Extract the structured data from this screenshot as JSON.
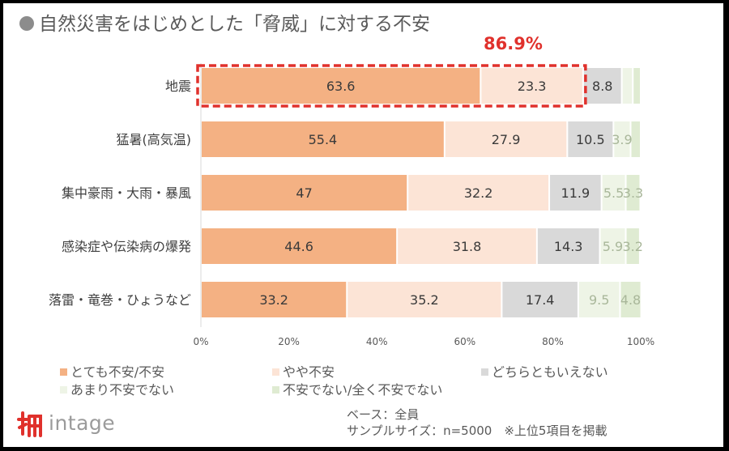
{
  "title": "自然災害をはじめとした「脅威」に対する不安",
  "callout": "86.9%",
  "legend": [
    {
      "name": "とても不安/不安",
      "color": "#f4b183"
    },
    {
      "name": "やや不安",
      "color": "#fce4d6"
    },
    {
      "name": "どちらともいえない",
      "color": "#d9d9d9"
    },
    {
      "name": "あまり不安でない",
      "color": "#eef4e6"
    },
    {
      "name": "不安でない/全く不安でない",
      "color": "#dfebd2"
    }
  ],
  "footer": {
    "line1": "ベース：全員",
    "line2": "サンプルサイズ：n=5000　※上位5項目を掲載"
  },
  "logo": {
    "text": "intage"
  },
  "chart_data": {
    "type": "bar",
    "orientation": "horizontal",
    "stacked": true,
    "categories": [
      "地震",
      "猛暑(高気温)",
      "集中豪雨・大雨・暴風",
      "感染症や伝染病の爆発",
      "落雷・竜巻・ひょうなど"
    ],
    "series": [
      {
        "name": "とても不安/不安",
        "values": [
          63.6,
          55.4,
          47,
          44.6,
          33.2
        ]
      },
      {
        "name": "やや不安",
        "values": [
          23.3,
          27.9,
          32.2,
          31.8,
          35.2
        ]
      },
      {
        "name": "どちらともいえない",
        "values": [
          8.8,
          10.5,
          11.9,
          14.3,
          17.4
        ]
      },
      {
        "name": "あまり不安でない",
        "values": [
          2.5,
          3.9,
          5.5,
          5.9,
          9.5
        ]
      },
      {
        "name": "不安でない/全く不安でない",
        "values": [
          1.8,
          2.3,
          3.3,
          3.2,
          4.8
        ]
      }
    ],
    "labels": [
      [
        "63.6",
        "23.3",
        "8.8",
        "",
        ""
      ],
      [
        "55.4",
        "27.9",
        "10.5",
        "3.9",
        ""
      ],
      [
        "47",
        "32.2",
        "11.9",
        "5.5",
        "3.3"
      ],
      [
        "44.6",
        "31.8",
        "14.3",
        "5.9",
        "3.2"
      ],
      [
        "33.2",
        "35.2",
        "17.4",
        "9.5",
        "4.8"
      ]
    ],
    "xticks": [
      "0%",
      "20%",
      "40%",
      "60%",
      "80%",
      "100%"
    ],
    "xlim": [
      0,
      100
    ],
    "legend_position": "bottom",
    "highlight": {
      "category": "地震",
      "series": [
        "とても不安/不安",
        "やや不安"
      ],
      "label": "86.9%"
    }
  }
}
